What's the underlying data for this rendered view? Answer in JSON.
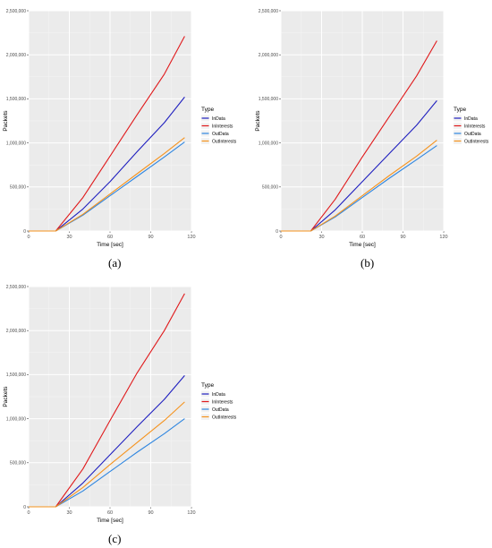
{
  "captions": [
    "(a)",
    "(b)",
    "(c)"
  ],
  "chart_data": [
    {
      "type": "line",
      "panel": "a",
      "xlabel": "Time [sec]",
      "ylabel": "Packets",
      "xlim": [
        0,
        120
      ],
      "ylim": [
        0,
        2500000
      ],
      "x_ticks": [
        0,
        30,
        60,
        90,
        120
      ],
      "y_ticks": [
        0,
        500000,
        1000000,
        1500000,
        2000000,
        2500000
      ],
      "y_tick_labels": [
        "0",
        "500,000",
        "1,000,000",
        "1,500,000",
        "2,000,000",
        "2,500,000"
      ],
      "grid": true,
      "legend": {
        "title": "Type",
        "placement": "right"
      },
      "series": [
        {
          "name": "InData",
          "color": "#1f1fbf",
          "x": [
            0,
            20,
            40,
            60,
            80,
            100,
            115
          ],
          "y": [
            0,
            0,
            250000,
            560000,
            900000,
            1230000,
            1520000
          ]
        },
        {
          "name": "InInterests",
          "color": "#e0191b",
          "x": [
            0,
            20,
            40,
            60,
            80,
            100,
            115
          ],
          "y": [
            0,
            0,
            380000,
            850000,
            1320000,
            1780000,
            2210000
          ]
        },
        {
          "name": "OutData",
          "color": "#2f86e0",
          "x": [
            0,
            20,
            40,
            60,
            80,
            100,
            115
          ],
          "y": [
            0,
            0,
            180000,
            400000,
            620000,
            840000,
            1010000
          ]
        },
        {
          "name": "OutInterests",
          "color": "#f5931e",
          "x": [
            0,
            20,
            40,
            60,
            80,
            100,
            115
          ],
          "y": [
            0,
            0,
            190000,
            420000,
            650000,
            880000,
            1060000
          ]
        }
      ]
    },
    {
      "type": "line",
      "panel": "b",
      "xlabel": "Time [sec]",
      "ylabel": "Packets",
      "xlim": [
        0,
        120
      ],
      "ylim": [
        0,
        2500000
      ],
      "x_ticks": [
        0,
        30,
        60,
        90,
        120
      ],
      "y_ticks": [
        0,
        500000,
        1000000,
        1500000,
        2000000,
        2500000
      ],
      "y_tick_labels": [
        "0",
        "500,000",
        "1,000,000",
        "1,500,000",
        "2,000,000",
        "2,500,000"
      ],
      "grid": true,
      "legend": {
        "title": "Type",
        "placement": "right"
      },
      "series": [
        {
          "name": "InData",
          "color": "#1f1fbf",
          "x": [
            0,
            22,
            40,
            60,
            80,
            100,
            115
          ],
          "y": [
            0,
            0,
            240000,
            560000,
            880000,
            1200000,
            1480000
          ]
        },
        {
          "name": "InInterests",
          "color": "#e0191b",
          "x": [
            0,
            22,
            40,
            60,
            80,
            100,
            115
          ],
          "y": [
            0,
            0,
            360000,
            840000,
            1300000,
            1760000,
            2160000
          ]
        },
        {
          "name": "OutData",
          "color": "#2f86e0",
          "x": [
            0,
            22,
            40,
            60,
            80,
            100,
            115
          ],
          "y": [
            0,
            0,
            160000,
            380000,
            600000,
            810000,
            970000
          ]
        },
        {
          "name": "OutInterests",
          "color": "#f5931e",
          "x": [
            0,
            22,
            40,
            60,
            80,
            100,
            115
          ],
          "y": [
            0,
            0,
            170000,
            400000,
            630000,
            850000,
            1030000
          ]
        }
      ]
    },
    {
      "type": "line",
      "panel": "c",
      "xlabel": "Time [sec]",
      "ylabel": "Packets",
      "xlim": [
        0,
        120
      ],
      "ylim": [
        0,
        2500000
      ],
      "x_ticks": [
        0,
        30,
        60,
        90,
        120
      ],
      "y_ticks": [
        0,
        500000,
        1000000,
        1500000,
        2000000,
        2500000
      ],
      "y_tick_labels": [
        "0",
        "500,000",
        "1,000,000",
        "1,500,000",
        "2,000,000",
        "2,500,000"
      ],
      "grid": true,
      "legend": {
        "title": "Type",
        "placement": "right"
      },
      "series": [
        {
          "name": "InData",
          "color": "#1f1fbf",
          "x": [
            0,
            20,
            40,
            60,
            80,
            100,
            115
          ],
          "y": [
            0,
            0,
            270000,
            590000,
            910000,
            1220000,
            1490000
          ]
        },
        {
          "name": "InInterests",
          "color": "#e0191b",
          "x": [
            0,
            20,
            40,
            60,
            80,
            100,
            115
          ],
          "y": [
            0,
            0,
            430000,
            980000,
            1520000,
            2000000,
            2420000
          ]
        },
        {
          "name": "OutData",
          "color": "#2f86e0",
          "x": [
            0,
            20,
            40,
            60,
            80,
            100,
            115
          ],
          "y": [
            0,
            0,
            180000,
            400000,
            620000,
            830000,
            1000000
          ]
        },
        {
          "name": "OutInterests",
          "color": "#f5931e",
          "x": [
            0,
            20,
            40,
            60,
            80,
            100,
            115
          ],
          "y": [
            0,
            0,
            220000,
            480000,
            730000,
            980000,
            1190000
          ]
        }
      ]
    }
  ]
}
